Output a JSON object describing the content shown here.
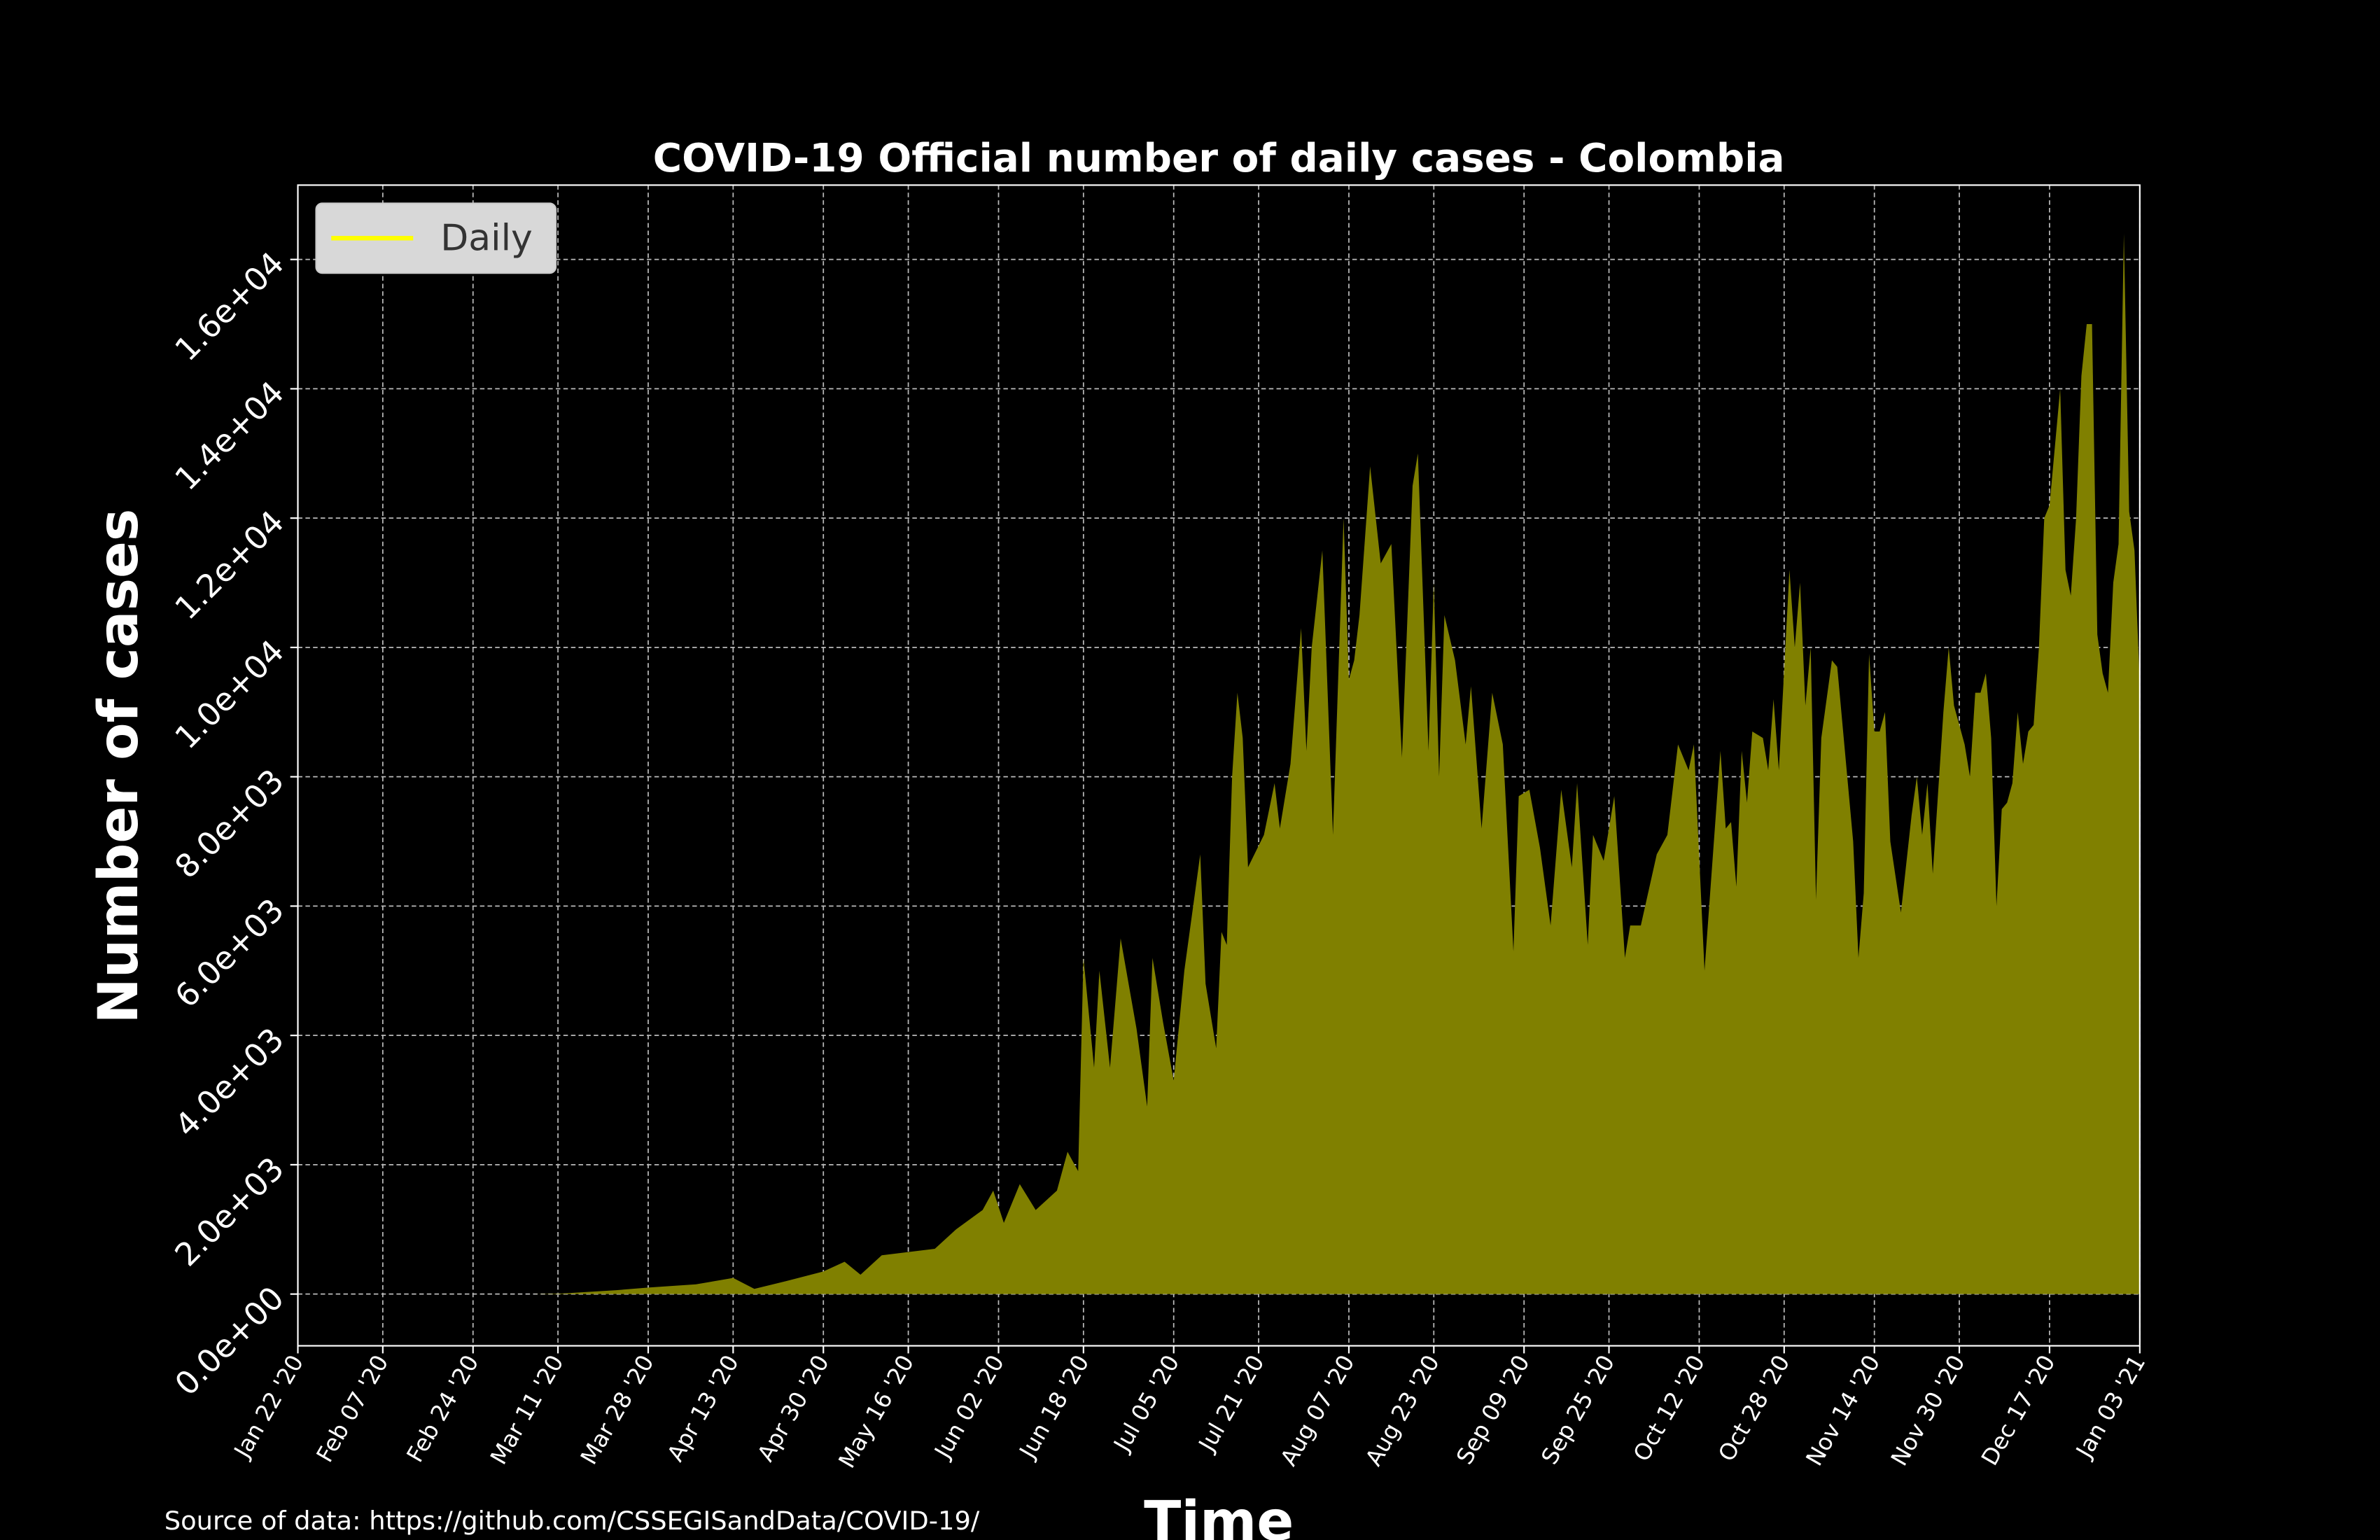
{
  "chart_data": {
    "type": "line",
    "title": "COVID-19 Official number of daily cases - Colombia",
    "xlabel": "Time",
    "ylabel": "Number of cases",
    "source": "Source of data: https://github.com/CSSEGISandData/COVID-19/",
    "x": [
      "2020-01-22",
      "2020-02-21",
      "2020-03-06",
      "2020-03-12",
      "2020-03-22",
      "2020-03-28",
      "2020-04-06",
      "2020-04-13",
      "2020-04-17",
      "2020-04-23",
      "2020-04-30",
      "2020-05-04",
      "2020-05-07",
      "2020-05-11",
      "2020-05-16",
      "2020-05-21",
      "2020-05-25",
      "2020-05-30",
      "2020-06-01",
      "2020-06-03",
      "2020-06-06",
      "2020-06-09",
      "2020-06-13",
      "2020-06-15",
      "2020-06-17",
      "2020-06-18",
      "2020-06-20",
      "2020-06-21",
      "2020-06-23",
      "2020-06-25",
      "2020-06-28",
      "2020-06-30",
      "2020-07-01",
      "2020-07-03",
      "2020-07-05",
      "2020-07-07",
      "2020-07-10",
      "2020-07-11",
      "2020-07-13",
      "2020-07-14",
      "2020-07-15",
      "2020-07-16",
      "2020-07-17",
      "2020-07-18",
      "2020-07-19",
      "2020-07-22",
      "2020-07-24",
      "2020-07-25",
      "2020-07-27",
      "2020-07-29",
      "2020-07-30",
      "2020-07-31",
      "2020-08-02",
      "2020-08-04",
      "2020-08-06",
      "2020-08-07",
      "2020-08-08",
      "2020-08-09",
      "2020-08-11",
      "2020-08-13",
      "2020-08-15",
      "2020-08-17",
      "2020-08-19",
      "2020-08-20",
      "2020-08-22",
      "2020-08-23",
      "2020-08-24",
      "2020-08-25",
      "2020-08-27",
      "2020-08-29",
      "2020-08-30",
      "2020-09-01",
      "2020-09-03",
      "2020-09-05",
      "2020-09-07",
      "2020-09-08",
      "2020-09-10",
      "2020-09-12",
      "2020-09-14",
      "2020-09-16",
      "2020-09-18",
      "2020-09-19",
      "2020-09-21",
      "2020-09-22",
      "2020-09-24",
      "2020-09-26",
      "2020-09-28",
      "2020-09-29",
      "2020-10-01",
      "2020-10-04",
      "2020-10-06",
      "2020-10-08",
      "2020-10-10",
      "2020-10-11",
      "2020-10-13",
      "2020-10-16",
      "2020-10-17",
      "2020-10-18",
      "2020-10-19",
      "2020-10-20",
      "2020-10-21",
      "2020-10-22",
      "2020-10-24",
      "2020-10-25",
      "2020-10-26",
      "2020-10-27",
      "2020-10-29",
      "2020-10-30",
      "2020-10-31",
      "2020-11-01",
      "2020-11-02",
      "2020-11-03",
      "2020-11-04",
      "2020-11-06",
      "2020-11-07",
      "2020-11-10",
      "2020-11-11",
      "2020-11-12",
      "2020-11-13",
      "2020-11-14",
      "2020-11-15",
      "2020-11-16",
      "2020-11-17",
      "2020-11-19",
      "2020-11-21",
      "2020-11-22",
      "2020-11-23",
      "2020-11-24",
      "2020-11-25",
      "2020-11-27",
      "2020-11-28",
      "2020-11-29",
      "2020-12-01",
      "2020-12-02",
      "2020-12-03",
      "2020-12-04",
      "2020-12-05",
      "2020-12-06",
      "2020-12-07",
      "2020-12-08",
      "2020-12-09",
      "2020-12-10",
      "2020-12-11",
      "2020-12-12",
      "2020-12-13",
      "2020-12-14",
      "2020-12-15",
      "2020-12-16",
      "2020-12-17",
      "2020-12-19",
      "2020-12-20",
      "2020-12-21",
      "2020-12-22",
      "2020-12-23",
      "2020-12-24",
      "2020-12-25",
      "2020-12-26",
      "2020-12-27",
      "2020-12-28",
      "2020-12-29",
      "2020-12-30",
      "2020-12-31",
      "2021-01-01",
      "2021-01-02",
      "2021-01-03"
    ],
    "series": [
      {
        "name": "Daily",
        "color": "#ffff00",
        "fill": "#808000",
        "values": [
          0,
          0,
          0,
          10,
          60,
          100,
          150,
          250,
          80,
          200,
          350,
          500,
          300,
          600,
          650,
          700,
          1000,
          1300,
          1600,
          1100,
          1700,
          1300,
          1600,
          2200,
          1900,
          5200,
          3500,
          5000,
          3500,
          5500,
          4100,
          2900,
          5200,
          4200,
          3300,
          5000,
          6800,
          4800,
          3800,
          5600,
          5400,
          8000,
          9300,
          8600,
          6600,
          7100,
          7900,
          7200,
          8200,
          10300,
          8400,
          10000,
          11500,
          7100,
          12000,
          9500,
          9800,
          10500,
          12800,
          11300,
          11600,
          8300,
          12500,
          13000,
          8400,
          11000,
          8000,
          10500,
          9800,
          8500,
          9400,
          7200,
          9300,
          8500,
          5300,
          7700,
          7800,
          6900,
          5700,
          7800,
          6600,
          7900,
          5400,
          7100,
          6700,
          7700,
          5200,
          5700,
          5700,
          6800,
          7100,
          8500,
          8100,
          8500,
          5000,
          8400,
          7200,
          7300,
          6300,
          8400,
          7600,
          8700,
          8600,
          8100,
          9200,
          8100,
          11200,
          10000,
          11000,
          9100,
          10000,
          6100,
          8600,
          9800,
          9700,
          7000,
          5200,
          6200,
          9900,
          8700,
          8700,
          9000,
          7000,
          5900,
          7400,
          8000,
          7100,
          7900,
          6500,
          9000,
          10000,
          9100,
          8500,
          8000,
          9300,
          9300,
          9600,
          8600,
          6000,
          7500,
          7600,
          7900,
          9000,
          8200,
          8700,
          8800,
          10000,
          12000,
          12200,
          14000,
          11200,
          10800,
          12000,
          14200,
          15000,
          15000,
          10200,
          9600,
          9300,
          11000,
          11600,
          16400,
          12100,
          11500,
          9400
        ]
      }
    ],
    "xlim": [
      "2020-01-22",
      "2021-01-03"
    ],
    "ylim": [
      -800,
      17150
    ],
    "xticks": [
      {
        "value": "2020-01-22",
        "label": "Jan 22 '20"
      },
      {
        "value": "2020-02-07",
        "label": "Feb 07 '20"
      },
      {
        "value": "2020-02-24",
        "label": "Feb 24 '20"
      },
      {
        "value": "2020-03-11",
        "label": "Mar 11 '20"
      },
      {
        "value": "2020-03-28",
        "label": "Mar 28 '20"
      },
      {
        "value": "2020-04-13",
        "label": "Apr 13 '20"
      },
      {
        "value": "2020-04-30",
        "label": "Apr 30 '20"
      },
      {
        "value": "2020-05-16",
        "label": "May 16 '20"
      },
      {
        "value": "2020-06-02",
        "label": "Jun 02 '20"
      },
      {
        "value": "2020-06-18",
        "label": "Jun 18 '20"
      },
      {
        "value": "2020-07-05",
        "label": "Jul 05 '20"
      },
      {
        "value": "2020-07-21",
        "label": "Jul 21 '20"
      },
      {
        "value": "2020-08-07",
        "label": "Aug 07 '20"
      },
      {
        "value": "2020-08-23",
        "label": "Aug 23 '20"
      },
      {
        "value": "2020-09-09",
        "label": "Sep 09 '20"
      },
      {
        "value": "2020-09-25",
        "label": "Sep 25 '20"
      },
      {
        "value": "2020-10-12",
        "label": "Oct 12 '20"
      },
      {
        "value": "2020-10-28",
        "label": "Oct 28 '20"
      },
      {
        "value": "2020-11-14",
        "label": "Nov 14 '20"
      },
      {
        "value": "2020-11-30",
        "label": "Nov 30 '20"
      },
      {
        "value": "2020-12-17",
        "label": "Dec 17 '20"
      },
      {
        "value": "2021-01-03",
        "label": "Jan 03 '21"
      }
    ],
    "yticks": [
      {
        "value": 0,
        "label": "0.0e+00"
      },
      {
        "value": 2000,
        "label": "2.0e+03"
      },
      {
        "value": 4000,
        "label": "4.0e+03"
      },
      {
        "value": 6000,
        "label": "6.0e+03"
      },
      {
        "value": 8000,
        "label": "8.0e+03"
      },
      {
        "value": 10000,
        "label": "1.0e+04"
      },
      {
        "value": 12000,
        "label": "1.2e+04"
      },
      {
        "value": 14000,
        "label": "1.4e+04"
      },
      {
        "value": 16000,
        "label": "1.6e+04"
      }
    ],
    "grid": true,
    "legend": "upper left"
  }
}
